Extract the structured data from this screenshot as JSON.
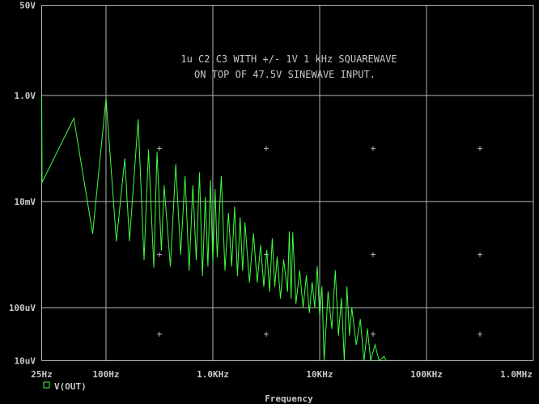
{
  "chart_data": {
    "type": "line",
    "title": "",
    "annotation": [
      "1u C2 C3 WITH +/- 1V 1 kHz SQUAREWAVE",
      "ON TOP OF 47.5V SINEWAVE INPUT."
    ],
    "xlabel": "Frequency",
    "ylabel": "",
    "xscale": "log",
    "yscale": "log",
    "xlim": [
      25,
      1000000
    ],
    "ylim": [
      1e-05,
      50
    ],
    "grid": true,
    "x_ticks": [
      {
        "value": 25,
        "label": "25Hz"
      },
      {
        "value": 100,
        "label": "100Hz"
      },
      {
        "value": 1000,
        "label": "1.0KHz"
      },
      {
        "value": 10000,
        "label": "10KHz"
      },
      {
        "value": 100000,
        "label": "100KHz"
      },
      {
        "value": 1000000,
        "label": "1.0MHz"
      }
    ],
    "y_ticks": [
      {
        "value": 50,
        "label": "50V"
      },
      {
        "value": 1,
        "label": "1.0V"
      },
      {
        "value": 0.01,
        "label": "10mV"
      },
      {
        "value": 0.0001,
        "label": "100uV"
      },
      {
        "value": 1e-05,
        "label": "10uV"
      }
    ],
    "legend": {
      "placement": "bottom-left",
      "entries": [
        {
          "name": "V(OUT)",
          "marker": "square"
        }
      ]
    },
    "colors": {
      "background": "#000000",
      "grid": "#b4b4b4",
      "trace": "#40ff40",
      "text": "#c8c8c8"
    },
    "series": [
      {
        "name": "V(OUT)",
        "points": [
          [
            25,
            1.0
          ],
          [
            25.2,
            0.023
          ],
          [
            50,
            0.37
          ],
          [
            75,
            0.0025
          ],
          [
            100,
            0.87
          ],
          [
            125,
            0.0018
          ],
          [
            150,
            0.064
          ],
          [
            166,
            0.0018
          ],
          [
            200,
            0.35
          ],
          [
            227,
            0.0008
          ],
          [
            250,
            0.095
          ],
          [
            280,
            0.00058
          ],
          [
            300,
            0.085
          ],
          [
            330,
            0.0012
          ],
          [
            350,
            0.02
          ],
          [
            400,
            0.0006
          ],
          [
            450,
            0.05
          ],
          [
            500,
            0.001
          ],
          [
            550,
            0.03
          ],
          [
            600,
            0.0005
          ],
          [
            650,
            0.02
          ],
          [
            700,
            0.0008
          ],
          [
            750,
            0.035
          ],
          [
            800,
            0.0004
          ],
          [
            850,
            0.012
          ],
          [
            900,
            0.0006
          ],
          [
            950,
            0.025
          ],
          [
            1000,
            0.0007
          ],
          [
            1050,
            0.017
          ],
          [
            1100,
            0.0009
          ],
          [
            1200,
            0.03
          ],
          [
            1300,
            0.0005
          ],
          [
            1400,
            0.006
          ],
          [
            1500,
            0.0006
          ],
          [
            1600,
            0.008
          ],
          [
            1700,
            0.0004
          ],
          [
            1800,
            0.005
          ],
          [
            1900,
            0.0005
          ],
          [
            2000,
            0.004
          ],
          [
            2200,
            0.0003
          ],
          [
            2400,
            0.0025
          ],
          [
            2600,
            0.0003
          ],
          [
            2800,
            0.0015
          ],
          [
            3000,
            0.00025
          ],
          [
            3200,
            0.0012
          ],
          [
            3400,
            0.0002
          ],
          [
            3600,
            0.002
          ],
          [
            3800,
            0.00025
          ],
          [
            4000,
            0.0009
          ],
          [
            4300,
            0.00015
          ],
          [
            4600,
            0.0008
          ],
          [
            5000,
            0.0002
          ],
          [
            5200,
            0.0027
          ],
          [
            5400,
            0.00015
          ],
          [
            5600,
            0.0026
          ],
          [
            6000,
            0.00012
          ],
          [
            6500,
            0.0005
          ],
          [
            7000,
            0.0001
          ],
          [
            7500,
            0.0004
          ],
          [
            8000,
            8e-05
          ],
          [
            8500,
            0.0003
          ],
          [
            9000,
            0.0001
          ],
          [
            9500,
            0.0006
          ],
          [
            10000,
            7e-05
          ],
          [
            10500,
            0.00025
          ],
          [
            11000,
            1e-05
          ],
          [
            12000,
            0.0002
          ],
          [
            13000,
            4e-05
          ],
          [
            14000,
            0.0005
          ],
          [
            15000,
            3e-05
          ],
          [
            16000,
            0.00015
          ],
          [
            17000,
            1e-05
          ],
          [
            18000,
            0.00025
          ],
          [
            19000,
            3e-05
          ],
          [
            20000,
            0.0001
          ],
          [
            22000,
            2e-05
          ],
          [
            24000,
            6e-05
          ],
          [
            26000,
            1e-05
          ],
          [
            28000,
            4e-05
          ],
          [
            30000,
            1e-05
          ],
          [
            33000,
            2e-05
          ],
          [
            36000,
            1e-05
          ],
          [
            40000,
            1.2e-05
          ],
          [
            42000,
            1e-05
          ]
        ]
      }
    ]
  }
}
